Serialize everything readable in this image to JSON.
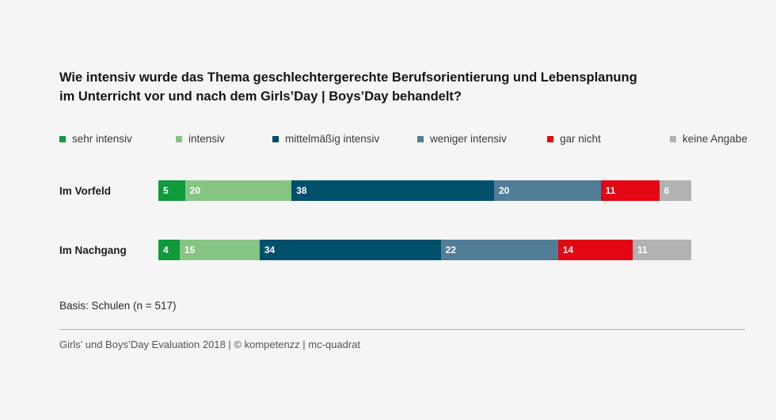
{
  "title_lines": [
    "Wie intensiv wurde das Thema geschlechtergerechte Berufsorientierung und Lebensplanung",
    "im Unterricht vor und nach dem Girls’Day | Boys’Day behandelt?"
  ],
  "legend": [
    {
      "label": "sehr intensiv",
      "color": "#0f9a3c"
    },
    {
      "label": "intensiv",
      "color": "#86c483"
    },
    {
      "label": "mittelmäßig intensiv",
      "color": "#004f6b"
    },
    {
      "label": "weniger intensiv",
      "color": "#527d96"
    },
    {
      "label": "gar nicht",
      "color": "#e30613"
    },
    {
      "label": "keine Angabe",
      "color": "#b2b2b2"
    }
  ],
  "chart_data": {
    "type": "bar",
    "orientation": "horizontal",
    "stacked": true,
    "title": "Wie intensiv wurde das Thema geschlechtergerechte Berufsorientierung und Lebensplanung im Unterricht vor und nach dem Girls’Day | Boys’Day behandelt?",
    "categories": [
      "Im Vorfeld",
      "Im Nachgang"
    ],
    "series": [
      {
        "name": "sehr intensiv",
        "values": [
          5,
          4
        ]
      },
      {
        "name": "intensiv",
        "values": [
          20,
          15
        ]
      },
      {
        "name": "mittelmäßig intensiv",
        "values": [
          38,
          34
        ]
      },
      {
        "name": "weniger intensiv",
        "values": [
          20,
          22
        ]
      },
      {
        "name": "gar nicht",
        "values": [
          11,
          14
        ]
      },
      {
        "name": "keine Angabe",
        "values": [
          6,
          11
        ]
      }
    ],
    "legend_position": "top",
    "grid": false
  },
  "basis": "Basis: Schulen (n = 517)",
  "footer": "Girls’ und Boys’Day Evaluation 2018 | © kompetenzz | mc-quadrat"
}
